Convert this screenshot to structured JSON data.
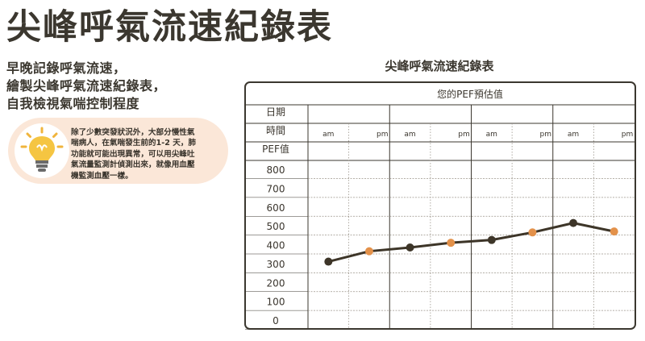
{
  "header": {
    "title": "尖峰呼氣流速紀錄表"
  },
  "intro": {
    "lines": [
      "早晚記錄呼氣流速，",
      "繪製尖峰呼氣流速紀錄表，",
      "自我檢視氣喘控制程度"
    ]
  },
  "tip": {
    "icon": "lightbulb-icon",
    "lines": [
      "除了少數突發狀況外，大部分慢性氣",
      "喘病人，在氣喘發生前的1-2 天，肺",
      "功能就可能出現異常，可以用尖峰吐",
      "氣流量監測計偵測出來，就像用血壓",
      "機監測血壓一樣。"
    ],
    "background": "#fbe7d8"
  },
  "chart_title": "尖峰呼氣流速紀錄表",
  "chart": {
    "header_label": "您的PEF預估值",
    "row_labels": [
      "日期",
      "時間",
      "PEF值"
    ]
  },
  "colors": {
    "line": "#3d3528",
    "am_point": "#3d3528",
    "pm_point": "#e3914a",
    "grid": "#9c958b",
    "frame": "#3b372f"
  },
  "chart_data": {
    "type": "line",
    "x": [
      "am",
      "pm",
      "am",
      "pm",
      "am",
      "pm",
      "am",
      "pm"
    ],
    "series": [
      {
        "values": [
          310,
          365,
          385,
          410,
          425,
          465,
          515,
          470
        ]
      }
    ],
    "ylim": [
      0,
      800
    ],
    "yticks": [
      800,
      700,
      600,
      500,
      400,
      300,
      200,
      100,
      0
    ],
    "grid": true
  }
}
